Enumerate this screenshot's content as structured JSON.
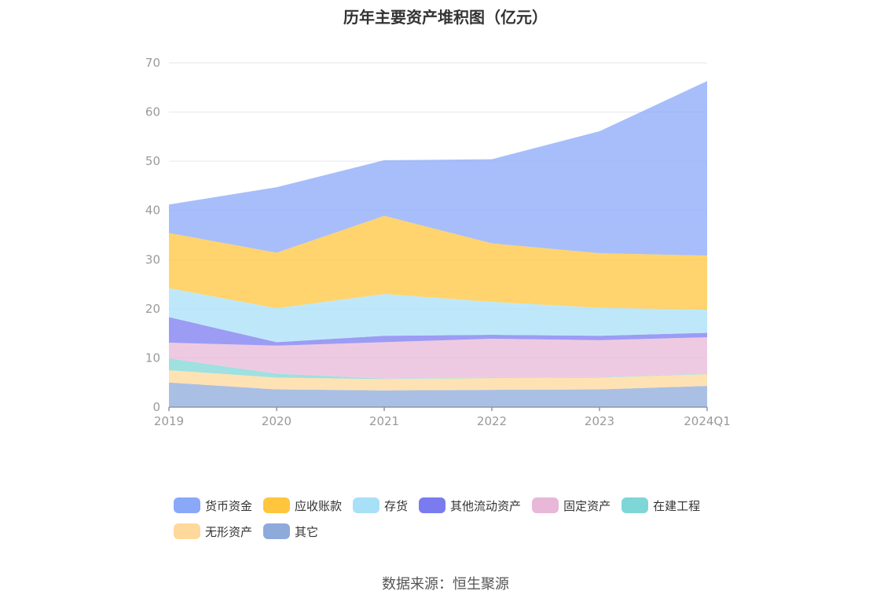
{
  "chart_data": {
    "type": "area",
    "stacked": true,
    "title": "历年主要资产堆积图（亿元）",
    "categories": [
      "2019",
      "2020",
      "2021",
      "2022",
      "2023",
      "2024Q1"
    ],
    "ylim": [
      0,
      70
    ],
    "yticks": [
      0,
      10,
      20,
      30,
      40,
      50,
      60,
      70
    ],
    "grid": true,
    "legend_position": "bottom",
    "series": [
      {
        "name": "其它",
        "color": "#8eaadb",
        "values": [
          5.0,
          3.6,
          3.4,
          3.5,
          3.6,
          4.3
        ]
      },
      {
        "name": "无形资产",
        "color": "#ffd89b",
        "values": [
          2.5,
          2.4,
          2.3,
          2.4,
          2.4,
          2.4
        ]
      },
      {
        "name": "在建工程",
        "color": "#7fd6d6",
        "values": [
          2.4,
          0.8,
          0.1,
          0.1,
          0.1,
          0.1
        ]
      },
      {
        "name": "固定资产",
        "color": "#e8b8d8",
        "values": [
          3.2,
          5.7,
          7.4,
          7.9,
          7.5,
          7.4
        ]
      },
      {
        "name": "其他流动资产",
        "color": "#7b7bf0",
        "values": [
          5.2,
          0.7,
          1.3,
          0.8,
          0.9,
          0.9
        ]
      },
      {
        "name": "存货",
        "color": "#a8e0f8",
        "values": [
          5.9,
          6.9,
          8.5,
          6.7,
          5.7,
          4.7
        ]
      },
      {
        "name": "应收账款",
        "color": "#ffc53d",
        "values": [
          11.2,
          11.3,
          15.9,
          11.9,
          11.1,
          11.0
        ]
      },
      {
        "name": "货币资金",
        "color": "#8aa8f8",
        "values": [
          5.8,
          13.3,
          11.3,
          17.1,
          24.8,
          35.5
        ]
      }
    ]
  },
  "legend": {
    "rows": [
      [
        {
          "label": "货币资金",
          "color": "#8aa8f8"
        },
        {
          "label": "应收账款",
          "color": "#ffc53d"
        },
        {
          "label": "存货",
          "color": "#a8e0f8"
        },
        {
          "label": "其他流动资产",
          "color": "#7b7bf0"
        },
        {
          "label": "固定资产",
          "color": "#e8b8d8"
        },
        {
          "label": "在建工程",
          "color": "#7fd6d6"
        }
      ],
      [
        {
          "label": "无形资产",
          "color": "#ffd89b"
        },
        {
          "label": "其它",
          "color": "#8eaadb"
        }
      ]
    ]
  },
  "source": "数据来源：恒生聚源"
}
